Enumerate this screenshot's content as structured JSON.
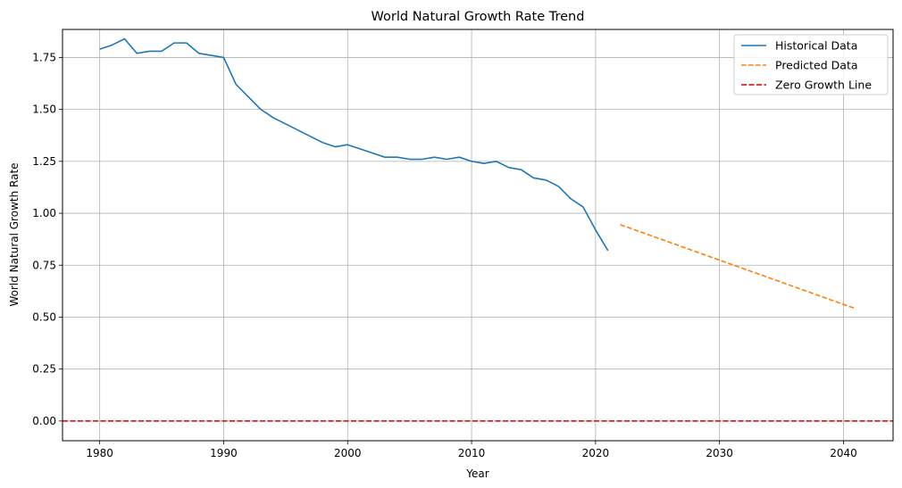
{
  "chart_data": {
    "type": "line",
    "title": "World Natural Growth Rate Trend",
    "xlabel": "Year",
    "ylabel": "World Natural Growth Rate",
    "xlim": [
      1977,
      2044
    ],
    "ylim": [
      -0.095,
      1.885
    ],
    "xticks": [
      1980,
      1990,
      2000,
      2010,
      2020,
      2030,
      2040
    ],
    "xtick_labels": [
      "1980",
      "1990",
      "2000",
      "2010",
      "2020",
      "2030",
      "2040"
    ],
    "yticks": [
      0.0,
      0.25,
      0.5,
      0.75,
      1.0,
      1.25,
      1.5,
      1.75
    ],
    "ytick_labels": [
      "0.00",
      "0.25",
      "0.50",
      "0.75",
      "1.00",
      "1.25",
      "1.50",
      "1.75"
    ],
    "grid": true,
    "legend_position": "top-right",
    "series": [
      {
        "name": "Historical Data",
        "color": "#1f77b4",
        "style": "solid",
        "x": [
          1980,
          1981,
          1982,
          1983,
          1984,
          1985,
          1986,
          1987,
          1988,
          1989,
          1990,
          1991,
          1992,
          1993,
          1994,
          1995,
          1996,
          1997,
          1998,
          1999,
          2000,
          2001,
          2002,
          2003,
          2004,
          2005,
          2006,
          2007,
          2008,
          2009,
          2010,
          2011,
          2012,
          2013,
          2014,
          2015,
          2016,
          2017,
          2018,
          2019,
          2020,
          2021
        ],
        "y": [
          1.79,
          1.81,
          1.84,
          1.77,
          1.78,
          1.78,
          1.82,
          1.82,
          1.77,
          1.76,
          1.75,
          1.62,
          1.56,
          1.5,
          1.46,
          1.43,
          1.4,
          1.37,
          1.34,
          1.32,
          1.33,
          1.31,
          1.29,
          1.27,
          1.27,
          1.26,
          1.26,
          1.27,
          1.26,
          1.27,
          1.25,
          1.24,
          1.25,
          1.22,
          1.21,
          1.17,
          1.16,
          1.13,
          1.07,
          1.03,
          0.92,
          0.82
        ]
      },
      {
        "name": "Predicted Data",
        "color": "#ff7f0e",
        "style": "dashed",
        "x": [
          2022,
          2041
        ],
        "y": [
          0.945,
          0.54
        ]
      },
      {
        "name": "Zero Growth Line",
        "color": "#d62728",
        "style": "dashed",
        "type": "hline",
        "y": 0.0
      }
    ]
  }
}
